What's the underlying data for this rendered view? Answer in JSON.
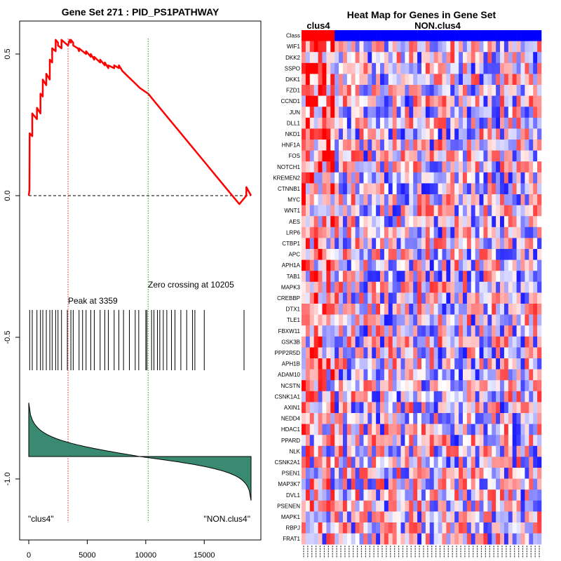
{
  "chart_data": [
    {
      "type": "line",
      "title": "Gene Set  271 : PID_PS1PATHWAY",
      "xlim": [
        0,
        19000
      ],
      "ylim": [
        -1.22,
        0.64
      ],
      "x_ticks": [
        0,
        5000,
        10000,
        15000
      ],
      "y_ticks": [
        0.5,
        0.0,
        -0.5,
        -1.0
      ],
      "x_tick_labels": [
        "0",
        "5000",
        "10000",
        "15000"
      ],
      "y_tick_labels": [
        "0.5",
        "0.0",
        "-0.5",
        "-1.0"
      ],
      "running_es": {
        "x": [
          0,
          60,
          80,
          300,
          301,
          700,
          701,
          1000,
          1001,
          1200,
          1201,
          1500,
          1501,
          1800,
          1801,
          2000,
          2001,
          2300,
          2301,
          2500,
          2501,
          2800,
          2801,
          3359,
          3500,
          3600,
          3601,
          3800,
          3801,
          4200,
          4300,
          4301,
          4600,
          4900,
          4901,
          5300,
          5301,
          5600,
          5601,
          6100,
          6101,
          6500,
          6501,
          6800,
          6801,
          7300,
          7301,
          7700,
          7701,
          8000,
          8500,
          9000,
          9500,
          10205,
          11000,
          12000,
          13000,
          14000,
          15000,
          16000,
          17000,
          18000,
          18400,
          18600,
          18601,
          19000
        ],
        "y": [
          0,
          0.02,
          0.22,
          0.21,
          0.29,
          0.27,
          0.31,
          0.29,
          0.36,
          0.35,
          0.41,
          0.39,
          0.43,
          0.41,
          0.48,
          0.47,
          0.52,
          0.51,
          0.55,
          0.54,
          0.53,
          0.52,
          0.55,
          0.53,
          0.55,
          0.54,
          0.55,
          0.54,
          0.53,
          0.52,
          0.51,
          0.52,
          0.51,
          0.5,
          0.51,
          0.49,
          0.5,
          0.48,
          0.49,
          0.47,
          0.48,
          0.46,
          0.47,
          0.45,
          0.46,
          0.45,
          0.46,
          0.45,
          0.46,
          0.44,
          0.42,
          0.4,
          0.38,
          0.36,
          0.32,
          0.27,
          0.22,
          0.17,
          0.12,
          0.07,
          0.02,
          -0.03,
          -0.01,
          0.0,
          0.03,
          0.0
        ]
      },
      "hit_positions": [
        80,
        300,
        700,
        1000,
        1200,
        1500,
        1800,
        2000,
        2300,
        2500,
        2800,
        3300,
        3600,
        3800,
        4300,
        4600,
        4900,
        5300,
        5600,
        6100,
        6500,
        6800,
        7300,
        7700,
        8100,
        8600,
        9100,
        9400,
        10000,
        10100,
        10500,
        10700,
        11000,
        11200,
        11500,
        11800,
        12200,
        12500,
        13000,
        13500,
        14000,
        14200,
        15000,
        18400
      ],
      "metric_range": [
        -0.92,
        -1.15
      ],
      "zero_line": 0,
      "peak": {
        "x": 3359,
        "label": "Peak at 3359"
      },
      "zero_crossing": {
        "x": 10205,
        "label": "Zero crossing at 10205"
      },
      "left_label": "\"clus4\"",
      "right_label": "\"NON.clus4\""
    },
    {
      "type": "heatmap",
      "title": "Heat Map for Genes in Gene Set",
      "column_groups": [
        {
          "name": "clus4",
          "count": 8,
          "color": "#ff0000"
        },
        {
          "name": "NON.clus4",
          "count": 50,
          "color": "#0000ff"
        }
      ],
      "row_labels": [
        "Class",
        "WIF1",
        "DKK2",
        "SSPO",
        "DKK1",
        "FZD1",
        "CCND1",
        "JUN",
        "DLL1",
        "NKD1",
        "HNF1A",
        "FOS",
        "NOTCH1",
        "KREMEN2",
        "CTNNB1",
        "MYC",
        "WNT1",
        "AES",
        "LRP6",
        "CTBP1",
        "APC",
        "APH1A",
        "TAB1",
        "MAPK3",
        "CREBBP",
        "DTX1",
        "TLE1",
        "FBXW11",
        "GSK3B",
        "PPP2R5D",
        "APH1B",
        "ADAM10",
        "NCSTN",
        "CSNK1A1",
        "AXIN1",
        "NEDD4",
        "HDAC1",
        "PPARD",
        "NLK",
        "CSNK2A1",
        "PSEN1",
        "MAP3K7",
        "DVL1",
        "PSENEN",
        "MAPK1",
        "RBPJ",
        "FRAT1"
      ],
      "color_scale": {
        "low": "#0000ff",
        "mid": "#ffffff",
        "high": "#ff0000"
      }
    }
  ],
  "colors": {
    "es_line": "#ff0000",
    "peak_line": "#d62728",
    "zero_cross_line": "#2ca02c",
    "metric_fill": "#3a8a72",
    "hits": "#000000"
  }
}
